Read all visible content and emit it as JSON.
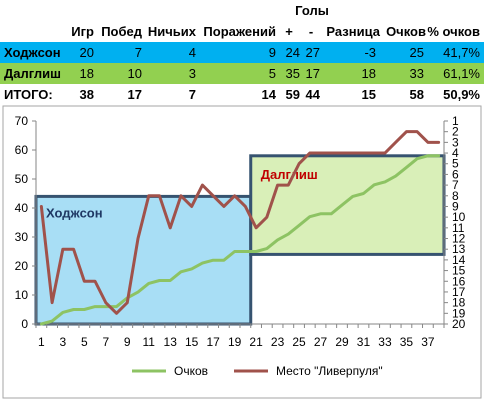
{
  "table": {
    "group_header": "Голы",
    "headers": [
      "Игр",
      "Побед",
      "Ничьих",
      "Поражений",
      "+",
      "-",
      "Разница",
      "Очков",
      "% очков"
    ],
    "rows": [
      {
        "name": "Ходжсон",
        "cells": [
          "20",
          "7",
          "4",
          "9",
          "24",
          "27",
          "-3",
          "25",
          "41,7%"
        ]
      },
      {
        "name": "Далглиш",
        "cells": [
          "18",
          "10",
          "3",
          "5",
          "35",
          "17",
          "18",
          "33",
          "61,1%"
        ]
      },
      {
        "name": "ИТОГО:",
        "cells": [
          "38",
          "17",
          "7",
          "14",
          "59",
          "44",
          "15",
          "58",
          "50,9%"
        ]
      }
    ]
  },
  "chart_data": {
    "type": "line",
    "x": [
      1,
      2,
      3,
      4,
      5,
      6,
      7,
      8,
      9,
      10,
      11,
      12,
      13,
      14,
      15,
      16,
      17,
      18,
      19,
      20,
      21,
      22,
      23,
      24,
      25,
      26,
      27,
      28,
      29,
      30,
      31,
      32,
      33,
      34,
      35,
      36,
      37,
      38
    ],
    "x_tick_labels": [
      "1",
      "3",
      "5",
      "7",
      "9",
      "11",
      "13",
      "15",
      "17",
      "19",
      "21",
      "23",
      "25",
      "27",
      "29",
      "31",
      "33",
      "35",
      "37"
    ],
    "y_left_range": [
      0,
      70
    ],
    "y_left_ticks": [
      "0",
      "10",
      "20",
      "30",
      "40",
      "50",
      "60",
      "70"
    ],
    "y_right_range": [
      1,
      20
    ],
    "y_right_reversed": true,
    "y_right_ticks": [
      "1",
      "2",
      "3",
      "4",
      "5",
      "6",
      "7",
      "8",
      "9",
      "10",
      "11",
      "12",
      "13",
      "14",
      "15",
      "16",
      "17",
      "18",
      "19",
      "20"
    ],
    "series": [
      {
        "name": "Очков",
        "axis": "left",
        "color": "#8dc363",
        "values": [
          0,
          1,
          4,
          5,
          5,
          6,
          6,
          6,
          9,
          11,
          14,
          15,
          15,
          18,
          19,
          21,
          22,
          22,
          25,
          25,
          25,
          26,
          29,
          31,
          34,
          37,
          38,
          38,
          41,
          44,
          45,
          48,
          49,
          51,
          54,
          57,
          58,
          58
        ]
      },
      {
        "name": "Место \"Ливерпуля\"",
        "axis": "right",
        "color": "#a0524b",
        "values": [
          9,
          18,
          13,
          13,
          16,
          16,
          18,
          19,
          18,
          12,
          8,
          8,
          11,
          8,
          9,
          7,
          8,
          9,
          8,
          9,
          11,
          10,
          7,
          7,
          5,
          4,
          4,
          4,
          4,
          4,
          4,
          4,
          4,
          3,
          2,
          2,
          3,
          3
        ]
      }
    ],
    "annotations": [
      {
        "label": "Ходжсон",
        "from_x": 1,
        "to_x": 20,
        "fill": "#a8def5",
        "text_color": "#1f3864"
      },
      {
        "label": "Далглиш",
        "from_x": 21,
        "to_x": 38,
        "fill": "#d9efb8",
        "text_color": "#c00000"
      }
    ],
    "legend_position": "bottom",
    "grid": false
  }
}
